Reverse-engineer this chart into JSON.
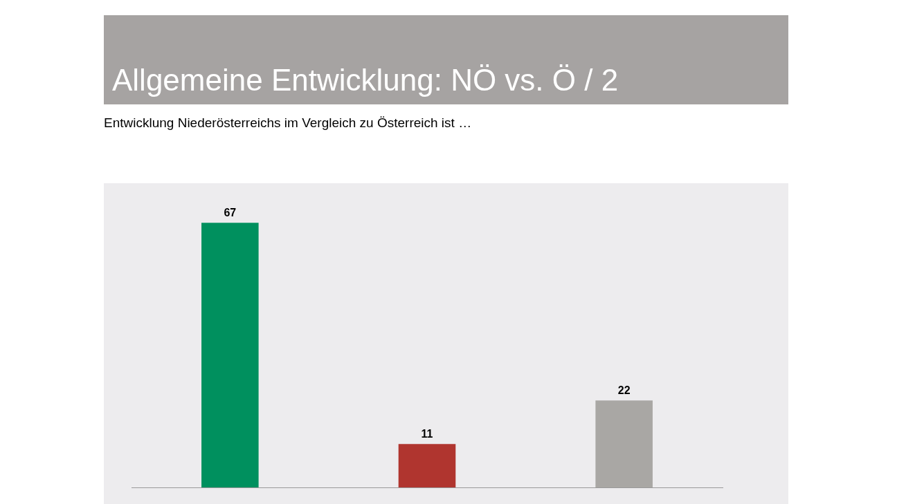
{
  "chart_data": {
    "type": "bar",
    "title": "Allgemeine Entwicklung: NÖ vs. Ö / 2",
    "subtitle": "Entwicklung Niederösterreichs im Vergleich zu Österreich ist …",
    "categories": [
      null,
      null,
      null
    ],
    "values": [
      67,
      11,
      22
    ],
    "colors": [
      "#00905e",
      "#b0352f",
      "#a9a7a4"
    ],
    "data_labels": true
  }
}
